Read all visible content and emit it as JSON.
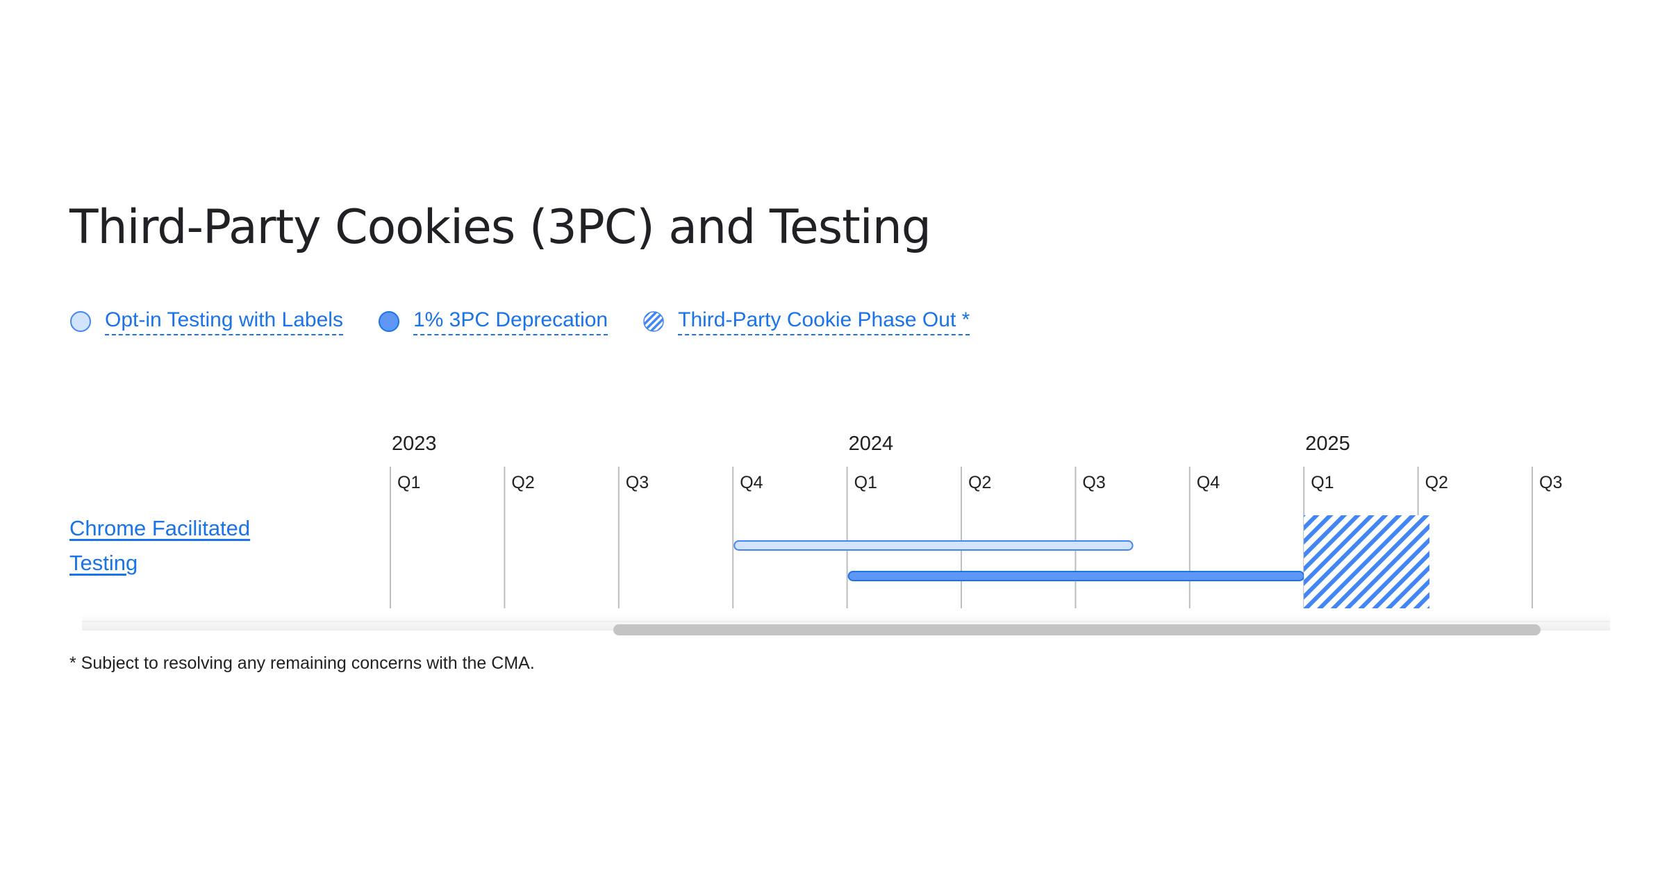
{
  "page": {
    "title": "Third-Party Cookies (3PC) and Testing",
    "footnote": "* Subject to resolving any remaining concerns with the CMA."
  },
  "legend": {
    "items": [
      {
        "label": "Opt-in Testing with Labels",
        "style": "light",
        "icon": "light-circle-icon"
      },
      {
        "label": "1% 3PC Deprecation",
        "style": "solid",
        "icon": "solid-circle-icon"
      },
      {
        "label": "Third-Party Cookie Phase Out *",
        "style": "hatched",
        "icon": "hatched-circle-icon"
      }
    ]
  },
  "timeline": {
    "years": [
      {
        "label": "2023",
        "quarter_index": 0
      },
      {
        "label": "2024",
        "quarter_index": 4
      },
      {
        "label": "2025",
        "quarter_index": 8
      }
    ],
    "quarters": [
      "Q1",
      "Q2",
      "Q3",
      "Q4",
      "Q1",
      "Q2",
      "Q3",
      "Q4",
      "Q1",
      "Q2",
      "Q3"
    ],
    "rows": [
      {
        "label": "Chrome Facilitated Testing",
        "bars": [
          {
            "name": "Opt-in Testing with Labels",
            "style": "light",
            "start": 3,
            "end": 6.5
          },
          {
            "name": "1% 3PC Deprecation",
            "style": "solid",
            "start": 4,
            "end": 8
          },
          {
            "name": "Third-Party Cookie Phase Out *",
            "style": "hatched",
            "start": 8,
            "end": 9.1
          }
        ]
      }
    ]
  },
  "colors": {
    "link": "#1a73e8",
    "light_fill": "#d2e3fc",
    "light_stroke": "#4285f4",
    "solid_fill": "#5e97f6",
    "solid_stroke": "#1a73e8",
    "hatch": "#4285f4",
    "grid": "#bdbdbd",
    "scrollbar": "#c4c4c4"
  }
}
